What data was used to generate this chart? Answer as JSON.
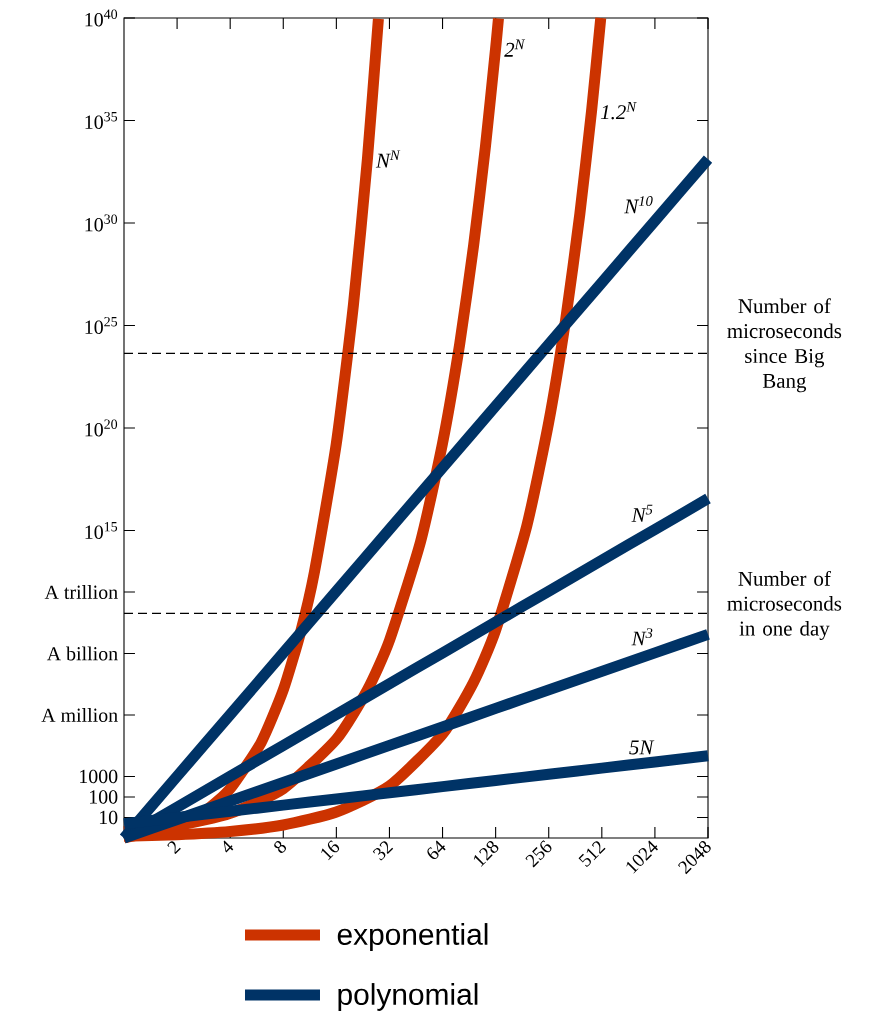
{
  "chart_data": {
    "type": "line",
    "log": "xy",
    "xlim": [
      1,
      2048
    ],
    "ylim": [
      1,
      1e+40
    ],
    "xticks": [
      2,
      4,
      8,
      16,
      32,
      64,
      128,
      256,
      512,
      1024,
      2048
    ],
    "yticks": [
      10,
      100,
      1000,
      {
        "value": 1000000.0,
        "label": "A million"
      },
      {
        "value": 1000000000.0,
        "label": "A billion"
      },
      {
        "value": 1000000000000.0,
        "label": "A trillion"
      },
      {
        "value": 1000000000000000.0,
        "label": "10$^{15}$"
      },
      {
        "value": 1e+20,
        "label": "10$^{20}$"
      },
      {
        "value": 1e+25,
        "label": "10$^{25}$"
      },
      {
        "value": 1e+30,
        "label": "10$^{30}$"
      },
      {
        "value": 1e+35,
        "label": "10$^{35}$"
      },
      {
        "value": 1e+40,
        "label": "10$^{40}$"
      }
    ],
    "grid": false,
    "marker": "none",
    "line_style": "solid",
    "series": [
      {
        "name": "N$^{N}$",
        "color": "#cc3300",
        "x": [
          1,
          2,
          3,
          4,
          6,
          8,
          10,
          12,
          16,
          20,
          24,
          27.7
        ],
        "values": [
          1,
          4,
          27,
          256,
          46656,
          16800000.0,
          10000000000.0,
          8900000000000.0,
          1.8e+19,
          1.05e+26,
          1.33e+33,
          9e+39
        ]
      },
      {
        "name": "2$^{N}$",
        "color": "#cc3300",
        "x": [
          1,
          2,
          4,
          8,
          16,
          24,
          32,
          48,
          64,
          80,
          96,
          112,
          128,
          132.8
        ],
        "values": [
          2,
          4,
          16,
          256,
          65536,
          16800000.0,
          4300000000.0,
          280000000000000.0,
          1.8e+19,
          1.2e+24,
          7.9e+28,
          5.2e+33,
          3.4e+38,
          9.5e+39
        ]
      },
      {
        "name": "1.2$^{N}$",
        "color": "#cc3300",
        "x": [
          1,
          2,
          4,
          8,
          16,
          32,
          64,
          96,
          128,
          192,
          256,
          320,
          384,
          448,
          505
        ],
        "values": [
          1.2,
          1.44,
          2.07,
          4.3,
          18.5,
          342,
          117000.0,
          40000000.0,
          13700000000.0,
          1600000000000000.0,
          1.9e+20,
          2.2e+25,
          2.6e+30,
          3e+35,
          1e+40
        ]
      },
      {
        "name": "N$^{10}$",
        "color": "#003366",
        "x": [
          1,
          2,
          4,
          8,
          16,
          32,
          64,
          128,
          256,
          512,
          1024,
          2048
        ],
        "values": [
          1,
          1024,
          1050000.0,
          1070000000.0,
          1100000000000.0,
          1130000000000000.0,
          1.15e+18,
          1.18e+21,
          1.21e+24,
          1.24e+27,
          1.27e+30,
          1.3e+33
        ]
      },
      {
        "name": "N$^{5}$",
        "color": "#003366",
        "x": [
          1,
          2,
          4,
          8,
          16,
          32,
          64,
          128,
          256,
          512,
          1024,
          2048
        ],
        "values": [
          1,
          32,
          1024,
          32768,
          1050000.0,
          33600000.0,
          1070000000.0,
          34400000000.0,
          1100000000000.0,
          35200000000000.0,
          1130000000000000.0,
          3.6e+16
        ]
      },
      {
        "name": "N$^{3}$",
        "color": "#003366",
        "x": [
          1,
          2,
          4,
          8,
          16,
          32,
          64,
          128,
          256,
          512,
          1024,
          2048
        ],
        "values": [
          1,
          8,
          64,
          512,
          4096,
          32768,
          260000.0,
          2100000.0,
          16800000.0,
          134000000.0,
          1070000000.0,
          8600000000.0
        ]
      },
      {
        "name": "5N",
        "color": "#003366",
        "x": [
          1,
          2,
          4,
          8,
          16,
          32,
          64,
          128,
          256,
          512,
          1024,
          2048
        ],
        "values": [
          5,
          10,
          20,
          40,
          80,
          160,
          320,
          640,
          1280,
          2560,
          5120,
          10240
        ]
      }
    ],
    "ref_lines": [
      {
        "axis": "y",
        "value": 4.4e+23,
        "label": "Number of microseconds since Big Bang",
        "color": "#000000",
        "line_style": "dashed"
      },
      {
        "axis": "y",
        "value": 90000000000.0,
        "label": "Number of microseconds in one day",
        "color": "#000000",
        "line_style": "dashed"
      }
    ],
    "annotations": [
      "exponential",
      "polynomial"
    ]
  }
}
